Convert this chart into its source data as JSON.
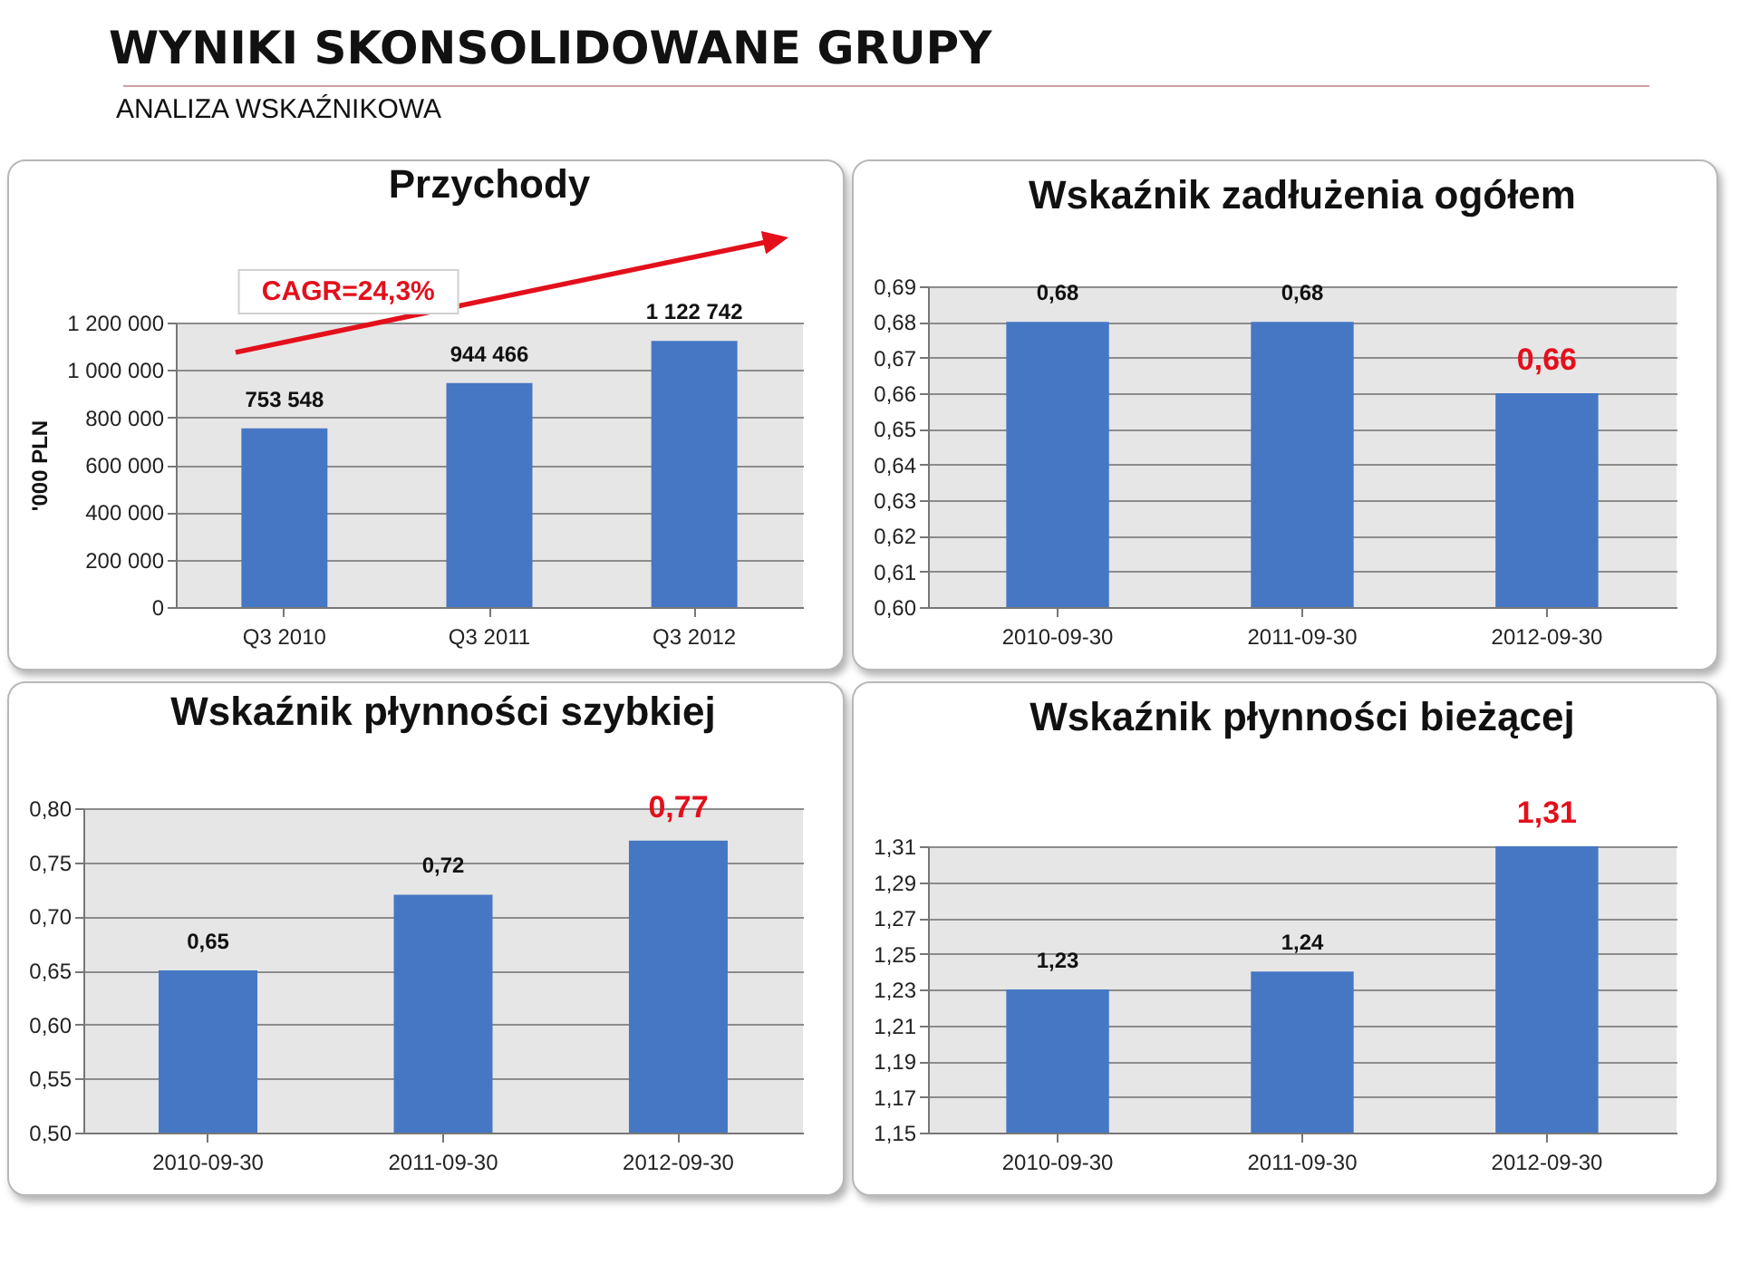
{
  "chart_data": [
    {
      "type": "other",
      "title": "WYNIKI SKONSOLIDOWANE GRUPY",
      "subtitle": "ANALIZA WSKAŹNIKOWA"
    },
    {
      "type": "bar",
      "title": "Przychody",
      "ylabel": "'000 PLN",
      "categories": [
        "Q3 2010",
        "Q3 2011",
        "Q3 2012"
      ],
      "values": [
        753548,
        944466,
        1122742
      ],
      "value_labels": [
        "753 548",
        "944 466",
        "1 122 742"
      ],
      "color": "#4677c4",
      "ylim": [
        0,
        1200000
      ],
      "yticks": [
        0,
        {
          "value": 200000,
          "label": "200 000"
        },
        {
          "value": 400000,
          "label": "400 000"
        },
        {
          "value": 600000,
          "label": "600 000"
        },
        {
          "value": 800000,
          "label": "800 000"
        },
        {
          "value": 1000000,
          "label": "1 000 000"
        },
        {
          "value": 1200000,
          "label": "1 200 000"
        }
      ],
      "grid": "y",
      "annotations": [
        "CAGR=24,3%"
      ]
    },
    {
      "type": "bar",
      "title": "Wskaźnik zadłużenia ogółem",
      "categories": [
        "2010-09-30",
        "2011-09-30",
        "2012-09-30"
      ],
      "values": [
        0.68,
        0.68,
        0.66
      ],
      "value_labels": [
        "0,68",
        "0,68",
        null
      ],
      "color": "#4677c4",
      "ylim": [
        0.6,
        0.69
      ],
      "yticks": [
        {
          "value": 0.6,
          "label": "0,60"
        },
        {
          "value": 0.61,
          "label": "0,61"
        },
        {
          "value": 0.62,
          "label": "0,62"
        },
        {
          "value": 0.63,
          "label": "0,63"
        },
        {
          "value": 0.64,
          "label": "0,64"
        },
        {
          "value": 0.65,
          "label": "0,65"
        },
        {
          "value": 0.66,
          "label": "0,66"
        },
        {
          "value": 0.67,
          "label": "0,67"
        },
        {
          "value": 0.68,
          "label": "0,68"
        },
        {
          "value": 0.69,
          "label": "0,69"
        }
      ],
      "grid": "y",
      "annotations": [
        {
          "text": "0,66",
          "x": "2012-09-30",
          "y": 0.66
        }
      ]
    },
    {
      "type": "bar",
      "title": "Wskaźnik płynności szybkiej",
      "categories": [
        "2010-09-30",
        "2011-09-30",
        "2012-09-30"
      ],
      "values": [
        0.65,
        0.72,
        0.77
      ],
      "value_labels": [
        "0,65",
        "0,72",
        null
      ],
      "color": "#4677c4",
      "ylim": [
        0.5,
        0.8
      ],
      "yticks": [
        {
          "value": 0.5,
          "label": "0,50"
        },
        {
          "value": 0.55,
          "label": "0,55"
        },
        {
          "value": 0.6,
          "label": "0,60"
        },
        {
          "value": 0.65,
          "label": "0,65"
        },
        {
          "value": 0.7,
          "label": "0,70"
        },
        {
          "value": 0.75,
          "label": "0,75"
        },
        {
          "value": 0.8,
          "label": "0,80"
        }
      ],
      "grid": "y",
      "annotations": [
        {
          "text": "0,77",
          "x": "2012-09-30",
          "y": 0.77
        }
      ]
    },
    {
      "type": "bar",
      "title": "Wskaźnik płynności bieżącej",
      "categories": [
        "2010-09-30",
        "2011-09-30",
        "2012-09-30"
      ],
      "values": [
        1.23,
        1.24,
        1.31
      ],
      "value_labels": [
        "1,23",
        "1,24",
        null
      ],
      "color": "#4677c4",
      "ylim": [
        1.15,
        1.31
      ],
      "yticks": [
        {
          "value": 1.15,
          "label": "1,15"
        },
        {
          "value": 1.17,
          "label": "1,17"
        },
        {
          "value": 1.19,
          "label": "1,19"
        },
        {
          "value": 1.21,
          "label": "1,21"
        },
        {
          "value": 1.23,
          "label": "1,23"
        },
        {
          "value": 1.25,
          "label": "1,25"
        },
        {
          "value": 1.27,
          "label": "1,27"
        },
        {
          "value": 1.29,
          "label": "1,29"
        },
        {
          "value": 1.31,
          "label": "1,31"
        }
      ],
      "grid": "y",
      "annotations": [
        {
          "text": "1,31",
          "x": "2012-09-30",
          "y": 1.31
        }
      ]
    }
  ]
}
